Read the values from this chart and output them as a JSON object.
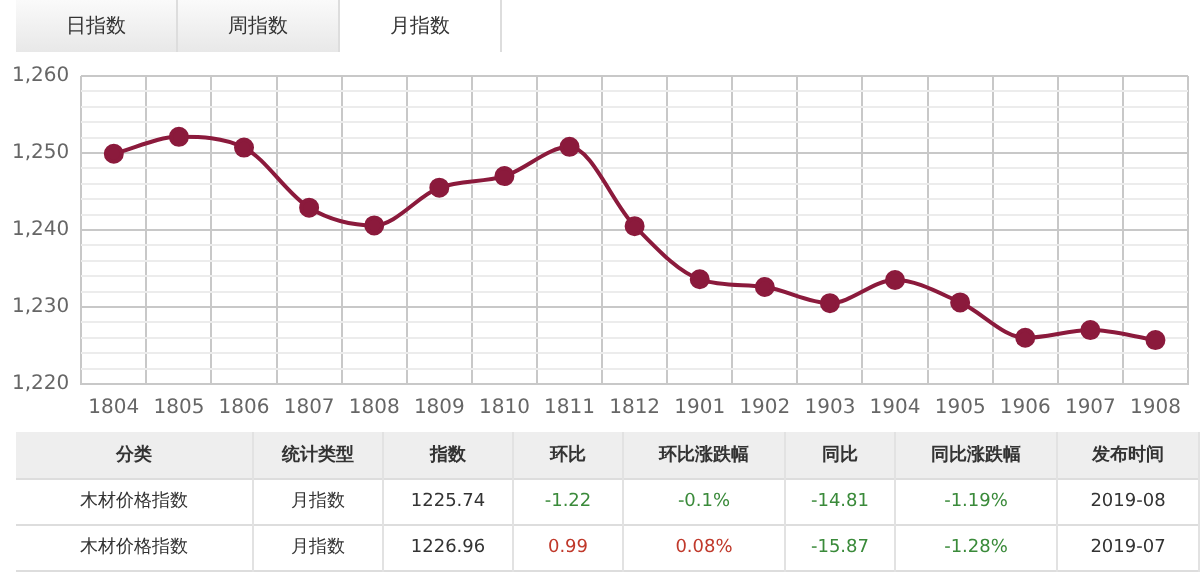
{
  "chart_data": {
    "type": "line",
    "categories": [
      "1804",
      "1805",
      "1806",
      "1807",
      "1808",
      "1809",
      "1810",
      "1811",
      "1812",
      "1901",
      "1902",
      "1903",
      "1904",
      "1905",
      "1906",
      "1907",
      "1908"
    ],
    "series": [
      {
        "color": "#8b1a3c",
        "values": [
          1249.9,
          1252.1,
          1250.7,
          1242.9,
          1240.6,
          1245.5,
          1247.0,
          1250.8,
          1240.5,
          1233.6,
          1232.6,
          1230.5,
          1233.5,
          1230.6,
          1226.0,
          1227.0,
          1225.7
        ]
      }
    ],
    "ylim": [
      1220,
      1260
    ],
    "yticks": [
      {
        "value": 1220,
        "label": "1,220"
      },
      {
        "value": 1222,
        "label": null
      },
      {
        "value": 1224,
        "label": null
      },
      {
        "value": 1226,
        "label": null
      },
      {
        "value": 1228,
        "label": null
      },
      {
        "value": 1230,
        "label": "1,230"
      },
      {
        "value": 1232,
        "label": null
      },
      {
        "value": 1234,
        "label": null
      },
      {
        "value": 1236,
        "label": null
      },
      {
        "value": 1238,
        "label": null
      },
      {
        "value": 1240,
        "label": "1,240"
      },
      {
        "value": 1242,
        "label": null
      },
      {
        "value": 1244,
        "label": null
      },
      {
        "value": 1246,
        "label": null
      },
      {
        "value": 1248,
        "label": null
      },
      {
        "value": 1250,
        "label": "1,250"
      },
      {
        "value": 1252,
        "label": null
      },
      {
        "value": 1254,
        "label": null
      },
      {
        "value": 1256,
        "label": null
      },
      {
        "value": 1258,
        "label": null
      },
      {
        "value": 1260,
        "label": "1,260"
      }
    ],
    "grid": true,
    "legend": false,
    "marker": "circle",
    "line_style": "solid",
    "annotations": [
      "日指数",
      "周指数",
      "月指数",
      "分类",
      "统计类型",
      "指数",
      "环比",
      "环比涨跌幅",
      "同比",
      "同比涨跌幅",
      "发布时间",
      "木材价格指数",
      "月指数",
      "1225.74",
      "-1.22",
      "-0.1%",
      "-14.81",
      "-1.19%",
      "2019-08",
      "木材价格指数",
      "月指数",
      "1226.96",
      "0.99",
      "0.08%",
      "-15.87",
      "-1.28%",
      "2019-07"
    ]
  }
}
